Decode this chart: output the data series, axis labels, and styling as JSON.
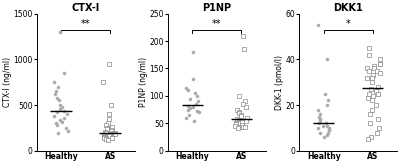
{
  "panels": [
    {
      "title": "CTX-I",
      "ylabel": "CTX-I (ng/ml)",
      "ylim": [
        0,
        1500
      ],
      "yticks": [
        0,
        500,
        1000,
        1500
      ],
      "sig": "**",
      "healthy": [
        1300,
        850,
        750,
        700,
        650,
        620,
        580,
        550,
        500,
        480,
        460,
        430,
        420,
        400,
        380,
        360,
        340,
        320,
        300,
        280,
        250,
        220,
        200
      ],
      "as": [
        950,
        750,
        500,
        400,
        350,
        300,
        280,
        260,
        250,
        240,
        230,
        220,
        210,
        200,
        200,
        195,
        190,
        185,
        180,
        175,
        170,
        165,
        160,
        155,
        150,
        145,
        140,
        135,
        130,
        120
      ]
    },
    {
      "title": "P1NP",
      "ylabel": "P1NP (ng/ml)",
      "ylim": [
        0,
        250
      ],
      "yticks": [
        0,
        50,
        100,
        150,
        200,
        250
      ],
      "sig": "**",
      "healthy": [
        180,
        130,
        115,
        110,
        105,
        100,
        95,
        90,
        85,
        82,
        80,
        78,
        75,
        73,
        70,
        65,
        60,
        55
      ],
      "as": [
        210,
        185,
        100,
        90,
        85,
        80,
        75,
        70,
        68,
        65,
        63,
        60,
        58,
        56,
        55,
        53,
        52,
        50,
        50,
        48,
        47,
        45,
        44,
        43,
        42
      ]
    },
    {
      "title": "DKK1",
      "ylabel": "DKK-1 (pmol/l)",
      "ylim": [
        0,
        60
      ],
      "yticks": [
        0,
        20,
        40,
        60
      ],
      "sig": "*",
      "healthy": [
        55,
        40,
        25,
        22,
        20,
        18,
        16,
        15,
        14,
        13,
        12,
        12,
        11,
        11,
        10,
        10,
        9,
        9,
        8,
        8,
        7,
        6
      ],
      "as": [
        45,
        42,
        40,
        38,
        38,
        37,
        36,
        36,
        35,
        35,
        34,
        33,
        32,
        32,
        30,
        28,
        27,
        26,
        25,
        25,
        24,
        23,
        22,
        20,
        18,
        16,
        14,
        12,
        10,
        8,
        6,
        5
      ]
    }
  ],
  "healthy_color": "#aaaaaa",
  "as_color": "#ffffff",
  "as_edge_color": "#888888",
  "median_color": "#000000",
  "bg_color": "#ffffff",
  "fontsize_title": 7,
  "fontsize_label": 5.5,
  "fontsize_tick": 5.5,
  "fontsize_sig": 7
}
